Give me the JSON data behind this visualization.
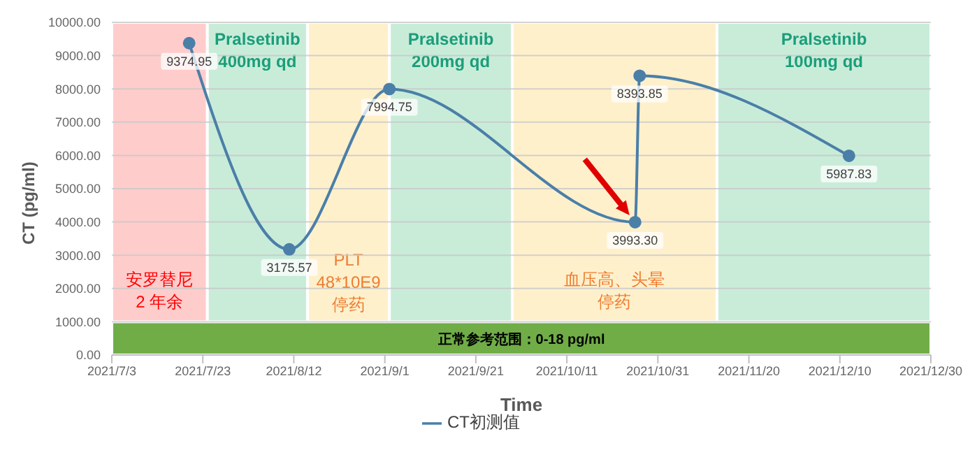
{
  "chart_data": {
    "type": "line",
    "xlabel": "Time",
    "ylabel": "CT (pg/ml)",
    "x": [
      "2021-07-20",
      "2021-08-11",
      "2021-09-02",
      "2021-10-26",
      "2021-10-27",
      "2021-12-12"
    ],
    "series": [
      {
        "name": "CT初测值",
        "color": "#4a7fa8",
        "values": [
          9374.95,
          3175.57,
          7994.75,
          3993.3,
          8393.85,
          5987.83
        ],
        "value_labels": [
          "9374.95",
          "3175.57",
          "7994.75",
          "3993.30",
          "8393.85",
          "5987.83"
        ]
      }
    ],
    "xlim": [
      "2021-07-03",
      "2021-12-30"
    ],
    "xticks": [
      {
        "value": "2021-07-03",
        "label": "2021/7/3"
      },
      {
        "value": "2021-07-23",
        "label": "2021/7/23"
      },
      {
        "value": "2021-08-12",
        "label": "2021/8/12"
      },
      {
        "value": "2021-09-01",
        "label": "2021/9/1"
      },
      {
        "value": "2021-09-21",
        "label": "2021/9/21"
      },
      {
        "value": "2021-10-11",
        "label": "2021/10/11"
      },
      {
        "value": "2021-10-31",
        "label": "2021/10/31"
      },
      {
        "value": "2021-11-20",
        "label": "2021/11/20"
      },
      {
        "value": "2021-12-10",
        "label": "2021/12/10"
      },
      {
        "value": "2021-12-30",
        "label": "2021/12/30"
      }
    ],
    "ylim": [
      0,
      10000
    ],
    "yticks": [
      {
        "value": 0,
        "label": "0.00"
      },
      {
        "value": 1000,
        "label": "1000.00"
      },
      {
        "value": 2000,
        "label": "2000.00"
      },
      {
        "value": 3000,
        "label": "3000.00"
      },
      {
        "value": 4000,
        "label": "4000.00"
      },
      {
        "value": 5000,
        "label": "5000.00"
      },
      {
        "value": 6000,
        "label": "6000.00"
      },
      {
        "value": 7000,
        "label": "7000.00"
      },
      {
        "value": 8000,
        "label": "8000.00"
      },
      {
        "value": 9000,
        "label": "9000.00"
      },
      {
        "value": 10000,
        "label": "10000.00"
      }
    ],
    "bands": [
      {
        "axis": "x",
        "from": "2021-07-03",
        "to": "2021-07-24",
        "label": "安罗替尼\n2 年余",
        "color": "#ffcccc"
      },
      {
        "axis": "x",
        "from": "2021-07-24",
        "to": "2021-08-15",
        "label": "Pralsetinib\n400mg qd",
        "color": "#c9ecd9"
      },
      {
        "axis": "x",
        "from": "2021-08-15",
        "to": "2021-09-02",
        "label": "PLT\n48*10E9\n停药",
        "color": "#fff0cc"
      },
      {
        "axis": "x",
        "from": "2021-09-02",
        "to": "2021-09-29",
        "label": "Pralsetinib\n200mg qd",
        "color": "#c9ecd9"
      },
      {
        "axis": "x",
        "from": "2021-09-29",
        "to": "2021-11-13",
        "label": "血压高、头晕停药",
        "color": "#fff0cc"
      },
      {
        "axis": "x",
        "from": "2021-11-13",
        "to": "2021-12-30",
        "label": "Pralsetinib\n100mg qd",
        "color": "#c9ecd9"
      },
      {
        "axis": "y",
        "from": 0,
        "to": 1000,
        "label": "正常参考范围：0-18 pg/ml",
        "color": "#70ad47"
      }
    ],
    "grid": "y",
    "legend": "bottom",
    "marker": "circle",
    "line_style": "solid"
  }
}
